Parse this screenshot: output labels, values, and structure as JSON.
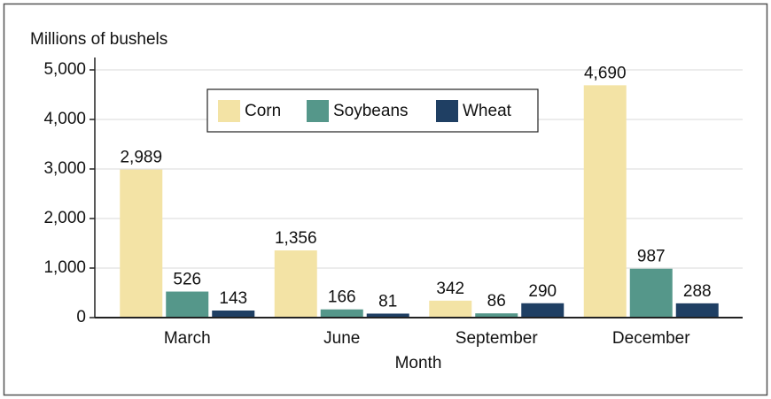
{
  "chart_data": {
    "type": "bar",
    "ylabel": "Millions of bushels",
    "xlabel": "Month",
    "categories": [
      "March",
      "June",
      "September",
      "December"
    ],
    "series": [
      {
        "name": "Corn",
        "color": "#f3e3a5",
        "values": [
          2989,
          1356,
          342,
          4690
        ],
        "value_labels": [
          "2,989",
          "1,356",
          "342",
          "4,690"
        ]
      },
      {
        "name": "Soybeans",
        "color": "#55978a",
        "values": [
          526,
          166,
          86,
          987
        ],
        "value_labels": [
          "526",
          "166",
          "86",
          "987"
        ]
      },
      {
        "name": "Wheat",
        "color": "#1f3f63",
        "values": [
          143,
          81,
          290,
          288
        ],
        "value_labels": [
          "143",
          "81",
          "290",
          "288"
        ]
      }
    ],
    "ylim": [
      0,
      5250
    ],
    "yticks": [
      0,
      {
        "value": 1000,
        "label": "1,000"
      },
      {
        "value": 2000,
        "label": "2,000"
      },
      {
        "value": 3000,
        "label": "3,000"
      },
      {
        "value": 4000,
        "label": "4,000"
      },
      {
        "value": 5000,
        "label": "5,000"
      }
    ],
    "grid": true,
    "legend": "upper center"
  }
}
